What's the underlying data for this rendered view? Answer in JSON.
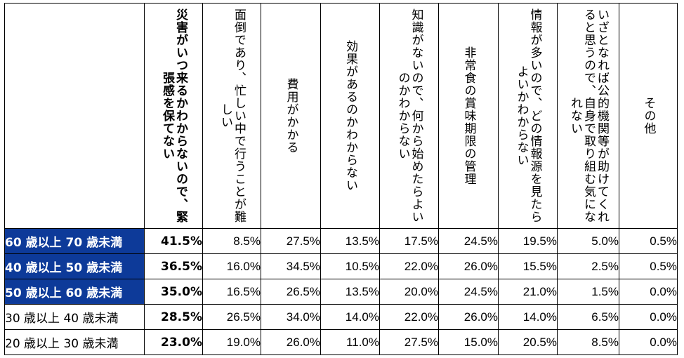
{
  "chart_data": {
    "type": "table",
    "columns": [
      "災害がいつ来るかわからないので、緊張感を保てない",
      "面倒であり、忙しい中で行うことが難しい",
      "費用がかかる",
      "効果があるのかわからない",
      "知識がないので、何から始めたらよいのかわからない",
      "非常食の賞味期限の管理",
      "情報が多いので、どの情報源を見たらよいかわからない",
      "いざとなれば公的機関等が助けてくれると思うので、自身で取り組む気になれない",
      "その他"
    ],
    "rows": [
      {
        "label": "60 歳以上 70 歳未満",
        "highlight": true,
        "values": [
          "41.5%",
          "8.5%",
          "27.5%",
          "13.5%",
          "17.5%",
          "24.5%",
          "19.5%",
          "5.0%",
          "0.5%"
        ]
      },
      {
        "label": "40 歳以上 50 歳未満",
        "highlight": true,
        "values": [
          "36.5%",
          "16.0%",
          "34.5%",
          "10.5%",
          "22.0%",
          "26.0%",
          "15.5%",
          "2.5%",
          "0.5%"
        ]
      },
      {
        "label": "50 歳以上 60 歳未満",
        "highlight": true,
        "values": [
          "35.0%",
          "16.5%",
          "26.5%",
          "13.5%",
          "20.0%",
          "24.5%",
          "21.0%",
          "1.5%",
          "0.0%"
        ]
      },
      {
        "label": "30 歳以上 40 歳未満",
        "highlight": false,
        "values": [
          "28.5%",
          "26.5%",
          "34.0%",
          "14.0%",
          "22.0%",
          "26.0%",
          "14.0%",
          "6.5%",
          "0.0%"
        ]
      },
      {
        "label": "20 歳以上 30 歳未満",
        "highlight": false,
        "values": [
          "23.0%",
          "19.0%",
          "26.0%",
          "11.0%",
          "27.5%",
          "15.0%",
          "20.5%",
          "8.5%",
          "0.0%"
        ]
      }
    ],
    "bold_column": 0,
    "colors": {
      "highlight_bg": "#0d3a99",
      "highlight_text": "#ffffff",
      "text": "#000000",
      "border": "#000000"
    }
  }
}
